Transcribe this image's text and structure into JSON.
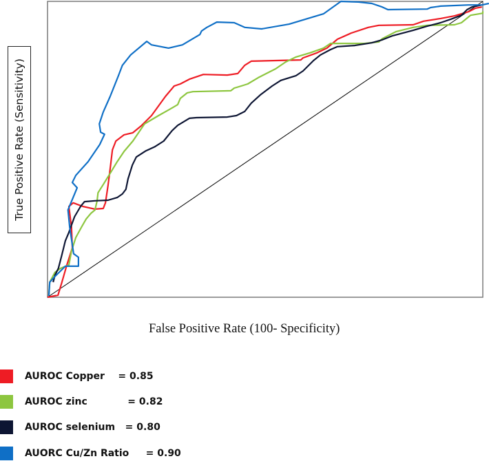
{
  "chart_data": {
    "type": "line",
    "title": "",
    "xlabel": "False Positive Rate (100- Specificity)",
    "ylabel": "True Positive Rate (Sensitivity)",
    "xlim": [
      0,
      1
    ],
    "ylim": [
      0,
      1
    ],
    "grid": false,
    "legend_placement": "bottom-left",
    "reference_line": {
      "x": [
        0,
        1
      ],
      "y": [
        0,
        1
      ],
      "color": "#000000"
    },
    "series": [
      {
        "name": "AUROC Copper",
        "auc": 0.85,
        "color": "#ee1c24",
        "legend_label": "AUROC Copper    = 0.85",
        "x": [
          0,
          0.024,
          0.033,
          0.044,
          0.057,
          0.055,
          0.049,
          0.059,
          0.081,
          0.109,
          0.128,
          0.133,
          0.139,
          0.144,
          0.149,
          0.157,
          0.176,
          0.196,
          0.215,
          0.239,
          0.271,
          0.291,
          0.305,
          0.326,
          0.358,
          0.413,
          0.437,
          0.453,
          0.468,
          0.582,
          0.587,
          0.619,
          0.642,
          0.666,
          0.698,
          0.737,
          0.761,
          0.84,
          0.864,
          0.903,
          0.935,
          0.967,
          0.983,
          0.998
        ],
        "y": [
          0,
          0.007,
          0.051,
          0.107,
          0.167,
          0.237,
          0.307,
          0.319,
          0.307,
          0.298,
          0.3,
          0.319,
          0.377,
          0.435,
          0.498,
          0.528,
          0.549,
          0.556,
          0.579,
          0.614,
          0.679,
          0.714,
          0.721,
          0.737,
          0.753,
          0.751,
          0.756,
          0.784,
          0.798,
          0.802,
          0.809,
          0.826,
          0.842,
          0.872,
          0.893,
          0.912,
          0.919,
          0.921,
          0.933,
          0.942,
          0.951,
          0.965,
          0.977,
          0.981
        ]
      },
      {
        "name": "AUROC zinc",
        "auc": 0.82,
        "color": "#8dc63f",
        "legend_label": "AUROC zinc            = 0.82",
        "x": [
          0.003,
          0.005,
          0.017,
          0.03,
          0.049,
          0.055,
          0.065,
          0.078,
          0.089,
          0.1,
          0.109,
          0.114,
          0.116,
          0.128,
          0.144,
          0.16,
          0.176,
          0.196,
          0.223,
          0.255,
          0.278,
          0.299,
          0.305,
          0.321,
          0.334,
          0.421,
          0.429,
          0.445,
          0.46,
          0.484,
          0.524,
          0.547,
          0.571,
          0.603,
          0.634,
          0.65,
          0.729,
          0.761,
          0.769,
          0.801,
          0.84,
          0.872,
          0.935,
          0.951,
          0.972,
          1.0,
          1.0
        ],
        "y": [
          0.005,
          0.051,
          0.084,
          0.098,
          0.109,
          0.156,
          0.202,
          0.237,
          0.265,
          0.284,
          0.295,
          0.326,
          0.353,
          0.381,
          0.419,
          0.458,
          0.493,
          0.528,
          0.586,
          0.614,
          0.633,
          0.651,
          0.672,
          0.691,
          0.695,
          0.698,
          0.707,
          0.714,
          0.721,
          0.742,
          0.772,
          0.795,
          0.812,
          0.826,
          0.842,
          0.858,
          0.858,
          0.863,
          0.874,
          0.898,
          0.912,
          0.919,
          0.921,
          0.928,
          0.953,
          0.96,
          0.967
        ]
      },
      {
        "name": "AUROC selenium",
        "auc": 0.8,
        "color": "#0d1533",
        "legend_label": "AUROC selenium   = 0.80",
        "x": [
          0.013,
          0.017,
          0.025,
          0.033,
          0.041,
          0.049,
          0.062,
          0.076,
          0.085,
          0.109,
          0.139,
          0.16,
          0.172,
          0.18,
          0.185,
          0.195,
          0.204,
          0.226,
          0.247,
          0.267,
          0.286,
          0.299,
          0.326,
          0.342,
          0.413,
          0.434,
          0.453,
          0.468,
          0.489,
          0.516,
          0.536,
          0.571,
          0.587,
          0.611,
          0.627,
          0.65,
          0.666,
          0.706,
          0.745,
          0.769,
          0.793,
          0.84,
          0.872,
          0.903,
          0.927,
          0.951,
          0.964,
          0.975,
          0.998
        ],
        "y": [
          0.051,
          0.074,
          0.098,
          0.144,
          0.191,
          0.219,
          0.272,
          0.307,
          0.323,
          0.326,
          0.328,
          0.337,
          0.349,
          0.365,
          0.4,
          0.447,
          0.474,
          0.495,
          0.509,
          0.528,
          0.563,
          0.581,
          0.605,
          0.607,
          0.609,
          0.614,
          0.628,
          0.656,
          0.684,
          0.714,
          0.733,
          0.749,
          0.765,
          0.8,
          0.819,
          0.837,
          0.847,
          0.851,
          0.86,
          0.87,
          0.884,
          0.902,
          0.916,
          0.928,
          0.94,
          0.953,
          0.972,
          0.981,
          0.988
        ]
      },
      {
        "name": "AUORC Cu/Zn Ratio",
        "auc": 0.9,
        "color": "#0f6fc6",
        "legend_label": "AUORC Cu/Zn Ratio     = 0.90",
        "x": [
          0.003,
          0.005,
          0.017,
          0.041,
          0.071,
          0.071,
          0.06,
          0.051,
          0.047,
          0.068,
          0.057,
          0.065,
          0.093,
          0.12,
          0.131,
          0.122,
          0.119,
          0.128,
          0.144,
          0.163,
          0.172,
          0.191,
          0.228,
          0.239,
          0.278,
          0.31,
          0.35,
          0.354,
          0.366,
          0.389,
          0.429,
          0.453,
          0.492,
          0.555,
          0.634,
          0.674,
          0.714,
          0.745,
          0.769,
          0.782,
          0.872,
          0.88,
          0.903,
          0.967,
          0.998,
          1.014
        ],
        "y": [
          0.005,
          0.051,
          0.07,
          0.105,
          0.105,
          0.135,
          0.147,
          0.237,
          0.295,
          0.37,
          0.388,
          0.412,
          0.458,
          0.516,
          0.551,
          0.558,
          0.586,
          0.626,
          0.679,
          0.749,
          0.784,
          0.819,
          0.865,
          0.853,
          0.842,
          0.853,
          0.888,
          0.9,
          0.912,
          0.93,
          0.928,
          0.912,
          0.907,
          0.923,
          0.958,
          1.0,
          0.998,
          0.993,
          0.981,
          0.972,
          0.974,
          0.979,
          0.984,
          0.988,
          0.988,
          0.993
        ]
      }
    ]
  }
}
